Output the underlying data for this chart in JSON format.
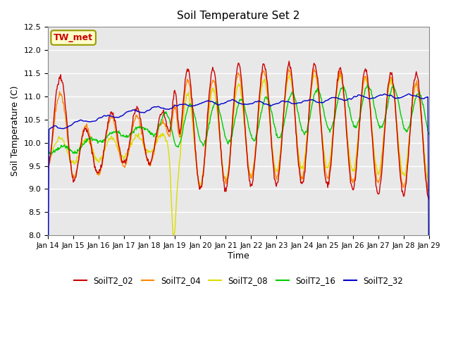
{
  "title": "Soil Temperature Set 2",
  "xlabel": "Time",
  "ylabel": "Soil Temperature (C)",
  "ylim": [
    8.0,
    12.5
  ],
  "yticks": [
    8.0,
    8.5,
    9.0,
    9.5,
    10.0,
    10.5,
    11.0,
    11.5,
    12.0,
    12.5
  ],
  "x_tick_labels": [
    "Jan 14",
    "Jan 15",
    "Jan 16",
    "Jan 17",
    "Jan 18",
    "Jan 19",
    "Jan 20",
    "Jan 21",
    "Jan 22",
    "Jan 23",
    "Jan 24",
    "Jan 25",
    "Jan 26",
    "Jan 27",
    "Jan 28",
    "Jan 29"
  ],
  "colors": {
    "SoilT2_02": "#cc0000",
    "SoilT2_04": "#ff8800",
    "SoilT2_08": "#dddd00",
    "SoilT2_16": "#00cc00",
    "SoilT2_32": "#0000cc"
  },
  "annotation_label": "TW_met",
  "annotation_color": "#cc0000",
  "annotation_bg": "#ffffcc",
  "annotation_border": "#999900",
  "plot_bg": "#e8e8e8",
  "grid_color": "#ffffff",
  "linewidth": 1.0,
  "n_days": 15
}
